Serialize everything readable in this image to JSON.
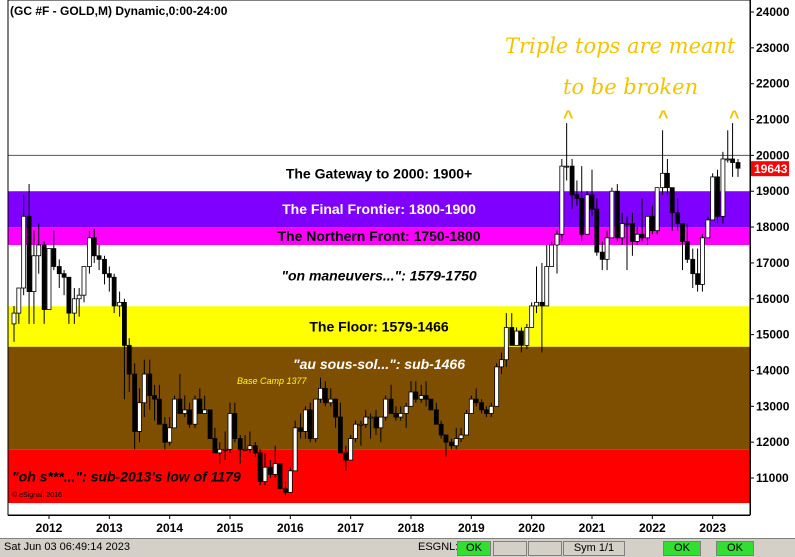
{
  "window": {
    "title": "(GC #F - GOLD,M) Dynamic,0:00-24:00"
  },
  "chart_data": {
    "type": "candlestick",
    "title": "(GC #F - GOLD,M) Dynamic,0:00-24:00",
    "y_ticks": [
      11000,
      12000,
      13000,
      14000,
      15000,
      16000,
      17000,
      18000,
      19000,
      20000,
      21000,
      22000,
      23000,
      24000
    ],
    "ylim": [
      10300,
      24200
    ],
    "x_ticks": [
      "2012",
      "2013",
      "2014",
      "2015",
      "2016",
      "2017",
      "2018",
      "2019",
      "2020",
      "2021",
      "2022",
      "2023"
    ],
    "last_price": "19643",
    "last_price_value": 19643,
    "reference_line": 20000,
    "bands": [
      {
        "label": "The Gateway to 2000:  1900+",
        "from": 19000,
        "to": 20000,
        "color": "#ffffff",
        "text_color": "#000000",
        "italic": false
      },
      {
        "label": "The Final Frontier:  1800-1900",
        "from": 18000,
        "to": 19000,
        "color": "#7f00ff",
        "text_color": "#ffffff",
        "italic": false
      },
      {
        "label": "The Northern Front:  1750-1800",
        "from": 17500,
        "to": 18000,
        "color": "#ff00ff",
        "text_color": "#000000",
        "italic": false
      },
      {
        "label": "\"on maneuvers...\":  1579-1750",
        "from": 15790,
        "to": 17500,
        "color": "#ffffff",
        "text_color": "#000000",
        "italic": true
      },
      {
        "label": "The Floor:  1579-1466",
        "from": 14660,
        "to": 15790,
        "color": "#ffff00",
        "text_color": "#000000",
        "italic": false
      },
      {
        "label": "\"au sous-sol...\":  sub-1466",
        "from": 11790,
        "to": 14660,
        "color": "#7f4f00",
        "text_color": "#ffffff",
        "italic": true
      },
      {
        "label": "\"oh s***...\":  sub-2013's low of 1179",
        "from": 10300,
        "to": 11790,
        "color": "#ff0000",
        "text_color": "#000000",
        "italic": true
      }
    ],
    "annotations": {
      "triple_tops_line1": "Triple tops are meant",
      "triple_tops_line2": "to be broken",
      "caret": "^",
      "base_camp": "Base Camp 1377",
      "copyright": "© eSignal, 2016"
    },
    "candles": [
      {
        "t": 2011.42,
        "o": 15300,
        "h": 15800,
        "l": 14800,
        "c": 15600
      },
      {
        "t": 2011.5,
        "o": 15600,
        "h": 16300,
        "l": 15300,
        "c": 16300
      },
      {
        "t": 2011.58,
        "o": 16300,
        "h": 18900,
        "l": 16100,
        "c": 18300
      },
      {
        "t": 2011.67,
        "o": 18300,
        "h": 19200,
        "l": 15300,
        "c": 16200
      },
      {
        "t": 2011.75,
        "o": 16200,
        "h": 17900,
        "l": 15300,
        "c": 17200
      },
      {
        "t": 2011.83,
        "o": 17200,
        "h": 18100,
        "l": 16700,
        "c": 17500
      },
      {
        "t": 2011.92,
        "o": 17500,
        "h": 17600,
        "l": 15300,
        "c": 15700
      },
      {
        "t": 2012.0,
        "o": 15700,
        "h": 17400,
        "l": 15700,
        "c": 17400
      },
      {
        "t": 2012.08,
        "o": 17400,
        "h": 17900,
        "l": 16800,
        "c": 16900
      },
      {
        "t": 2012.17,
        "o": 16900,
        "h": 17100,
        "l": 16300,
        "c": 16700
      },
      {
        "t": 2012.25,
        "o": 16700,
        "h": 16800,
        "l": 16100,
        "c": 16600
      },
      {
        "t": 2012.33,
        "o": 16600,
        "h": 16600,
        "l": 15300,
        "c": 15600
      },
      {
        "t": 2012.42,
        "o": 15600,
        "h": 16300,
        "l": 15300,
        "c": 16000
      },
      {
        "t": 2012.5,
        "o": 16000,
        "h": 16300,
        "l": 15500,
        "c": 16100
      },
      {
        "t": 2012.58,
        "o": 16100,
        "h": 16900,
        "l": 15900,
        "c": 16900
      },
      {
        "t": 2012.67,
        "o": 16900,
        "h": 17900,
        "l": 16700,
        "c": 17700
      },
      {
        "t": 2012.75,
        "o": 17700,
        "h": 17950,
        "l": 17000,
        "c": 17200
      },
      {
        "t": 2012.83,
        "o": 17200,
        "h": 17500,
        "l": 16800,
        "c": 17100
      },
      {
        "t": 2012.92,
        "o": 17100,
        "h": 17200,
        "l": 16400,
        "c": 16700
      },
      {
        "t": 2013.0,
        "o": 16700,
        "h": 16900,
        "l": 16200,
        "c": 16600
      },
      {
        "t": 2013.08,
        "o": 16600,
        "h": 16700,
        "l": 15600,
        "c": 15800
      },
      {
        "t": 2013.17,
        "o": 15800,
        "h": 16200,
        "l": 15500,
        "c": 15900
      },
      {
        "t": 2013.25,
        "o": 15900,
        "h": 16000,
        "l": 13200,
        "c": 14700
      },
      {
        "t": 2013.33,
        "o": 14700,
        "h": 14900,
        "l": 13400,
        "c": 13900
      },
      {
        "t": 2013.42,
        "o": 13900,
        "h": 14200,
        "l": 11800,
        "c": 12300
      },
      {
        "t": 2013.5,
        "o": 12300,
        "h": 13500,
        "l": 12000,
        "c": 13100
      },
      {
        "t": 2013.58,
        "o": 13100,
        "h": 14300,
        "l": 12700,
        "c": 13900
      },
      {
        "t": 2013.67,
        "o": 13900,
        "h": 14300,
        "l": 12900,
        "c": 13300
      },
      {
        "t": 2013.75,
        "o": 13300,
        "h": 13600,
        "l": 12600,
        "c": 13200
      },
      {
        "t": 2013.83,
        "o": 13200,
        "h": 13600,
        "l": 12500,
        "c": 12500
      },
      {
        "t": 2013.92,
        "o": 12500,
        "h": 12700,
        "l": 11800,
        "c": 12000
      },
      {
        "t": 2014.0,
        "o": 12000,
        "h": 12700,
        "l": 11900,
        "c": 12400
      },
      {
        "t": 2014.08,
        "o": 12400,
        "h": 13300,
        "l": 12400,
        "c": 13200
      },
      {
        "t": 2014.17,
        "o": 13200,
        "h": 13900,
        "l": 12800,
        "c": 12800
      },
      {
        "t": 2014.25,
        "o": 12800,
        "h": 13300,
        "l": 12700,
        "c": 12900
      },
      {
        "t": 2014.33,
        "o": 12900,
        "h": 13100,
        "l": 12400,
        "c": 12500
      },
      {
        "t": 2014.42,
        "o": 12500,
        "h": 13300,
        "l": 12400,
        "c": 13200
      },
      {
        "t": 2014.5,
        "o": 13200,
        "h": 13500,
        "l": 12900,
        "c": 12800
      },
      {
        "t": 2014.58,
        "o": 12800,
        "h": 13300,
        "l": 12800,
        "c": 12900
      },
      {
        "t": 2014.67,
        "o": 12900,
        "h": 12900,
        "l": 12100,
        "c": 12100
      },
      {
        "t": 2014.75,
        "o": 12100,
        "h": 12400,
        "l": 11800,
        "c": 11700
      },
      {
        "t": 2014.83,
        "o": 11700,
        "h": 12000,
        "l": 11400,
        "c": 11800
      },
      {
        "t": 2014.92,
        "o": 11800,
        "h": 12300,
        "l": 11500,
        "c": 11800
      },
      {
        "t": 2015.0,
        "o": 11800,
        "h": 13100,
        "l": 11700,
        "c": 12800
      },
      {
        "t": 2015.08,
        "o": 12800,
        "h": 13100,
        "l": 12000,
        "c": 12100
      },
      {
        "t": 2015.17,
        "o": 12100,
        "h": 12200,
        "l": 11400,
        "c": 11800
      },
      {
        "t": 2015.25,
        "o": 11800,
        "h": 12200,
        "l": 11800,
        "c": 11800
      },
      {
        "t": 2015.33,
        "o": 11800,
        "h": 12300,
        "l": 11700,
        "c": 11900
      },
      {
        "t": 2015.42,
        "o": 11900,
        "h": 12000,
        "l": 11600,
        "c": 11700
      },
      {
        "t": 2015.5,
        "o": 11700,
        "h": 11800,
        "l": 10800,
        "c": 10900
      },
      {
        "t": 2015.58,
        "o": 10900,
        "h": 11700,
        "l": 10800,
        "c": 11300
      },
      {
        "t": 2015.67,
        "o": 11300,
        "h": 11500,
        "l": 11000,
        "c": 11100
      },
      {
        "t": 2015.75,
        "o": 11100,
        "h": 11900,
        "l": 11000,
        "c": 11400
      },
      {
        "t": 2015.83,
        "o": 11400,
        "h": 11400,
        "l": 10700,
        "c": 10700
      },
      {
        "t": 2015.92,
        "o": 10700,
        "h": 10900,
        "l": 10500,
        "c": 10600
      },
      {
        "t": 2016.0,
        "o": 10600,
        "h": 11300,
        "l": 10600,
        "c": 11200
      },
      {
        "t": 2016.08,
        "o": 11200,
        "h": 12600,
        "l": 11200,
        "c": 12400
      },
      {
        "t": 2016.17,
        "o": 12400,
        "h": 12800,
        "l": 12100,
        "c": 12300
      },
      {
        "t": 2016.25,
        "o": 12300,
        "h": 13000,
        "l": 12100,
        "c": 12900
      },
      {
        "t": 2016.33,
        "o": 12900,
        "h": 13100,
        "l": 12000,
        "c": 12100
      },
      {
        "t": 2016.42,
        "o": 12100,
        "h": 13200,
        "l": 12000,
        "c": 13200
      },
      {
        "t": 2016.5,
        "o": 13200,
        "h": 13800,
        "l": 13100,
        "c": 13500
      },
      {
        "t": 2016.58,
        "o": 13500,
        "h": 13700,
        "l": 13000,
        "c": 13100
      },
      {
        "t": 2016.67,
        "o": 13100,
        "h": 13500,
        "l": 13000,
        "c": 13200
      },
      {
        "t": 2016.75,
        "o": 13200,
        "h": 13200,
        "l": 12400,
        "c": 12700
      },
      {
        "t": 2016.83,
        "o": 12700,
        "h": 13100,
        "l": 11700,
        "c": 11700
      },
      {
        "t": 2016.92,
        "o": 11700,
        "h": 11900,
        "l": 11200,
        "c": 11500
      },
      {
        "t": 2017.0,
        "o": 11500,
        "h": 12200,
        "l": 11500,
        "c": 12100
      },
      {
        "t": 2017.08,
        "o": 12100,
        "h": 12600,
        "l": 12000,
        "c": 12500
      },
      {
        "t": 2017.17,
        "o": 12500,
        "h": 12600,
        "l": 11900,
        "c": 12500
      },
      {
        "t": 2017.25,
        "o": 12500,
        "h": 12900,
        "l": 12400,
        "c": 12700
      },
      {
        "t": 2017.33,
        "o": 12700,
        "h": 12800,
        "l": 12100,
        "c": 12700
      },
      {
        "t": 2017.42,
        "o": 12700,
        "h": 12900,
        "l": 12200,
        "c": 12400
      },
      {
        "t": 2017.5,
        "o": 12400,
        "h": 12700,
        "l": 12000,
        "c": 12700
      },
      {
        "t": 2017.58,
        "o": 12700,
        "h": 13300,
        "l": 12600,
        "c": 13200
      },
      {
        "t": 2017.67,
        "o": 13200,
        "h": 13600,
        "l": 12800,
        "c": 12800
      },
      {
        "t": 2017.75,
        "o": 12800,
        "h": 13000,
        "l": 12600,
        "c": 12700
      },
      {
        "t": 2017.83,
        "o": 12700,
        "h": 13000,
        "l": 12600,
        "c": 12800
      },
      {
        "t": 2017.92,
        "o": 12800,
        "h": 13100,
        "l": 12400,
        "c": 13000
      },
      {
        "t": 2018.0,
        "o": 13000,
        "h": 13700,
        "l": 13000,
        "c": 13400
      },
      {
        "t": 2018.08,
        "o": 13400,
        "h": 13700,
        "l": 13100,
        "c": 13200
      },
      {
        "t": 2018.17,
        "o": 13200,
        "h": 13600,
        "l": 13100,
        "c": 13300
      },
      {
        "t": 2018.25,
        "o": 13300,
        "h": 13700,
        "l": 13000,
        "c": 13200
      },
      {
        "t": 2018.33,
        "o": 13200,
        "h": 13200,
        "l": 12900,
        "c": 12900
      },
      {
        "t": 2018.42,
        "o": 12900,
        "h": 13100,
        "l": 12500,
        "c": 12500
      },
      {
        "t": 2018.5,
        "o": 12500,
        "h": 12600,
        "l": 12100,
        "c": 12200
      },
      {
        "t": 2018.58,
        "o": 12200,
        "h": 12200,
        "l": 11600,
        "c": 12000
      },
      {
        "t": 2018.67,
        "o": 12000,
        "h": 12100,
        "l": 11800,
        "c": 11900
      },
      {
        "t": 2018.75,
        "o": 11900,
        "h": 12400,
        "l": 11800,
        "c": 12100
      },
      {
        "t": 2018.83,
        "o": 12100,
        "h": 12400,
        "l": 12000,
        "c": 12200
      },
      {
        "t": 2018.92,
        "o": 12200,
        "h": 12900,
        "l": 12200,
        "c": 12800
      },
      {
        "t": 2019.0,
        "o": 12800,
        "h": 13300,
        "l": 12800,
        "c": 13200
      },
      {
        "t": 2019.08,
        "o": 13200,
        "h": 13500,
        "l": 13000,
        "c": 13100
      },
      {
        "t": 2019.17,
        "o": 13100,
        "h": 13200,
        "l": 12800,
        "c": 12900
      },
      {
        "t": 2019.25,
        "o": 12900,
        "h": 13000,
        "l": 12700,
        "c": 12800
      },
      {
        "t": 2019.33,
        "o": 12800,
        "h": 13100,
        "l": 12700,
        "c": 13000
      },
      {
        "t": 2019.42,
        "o": 13000,
        "h": 14200,
        "l": 13000,
        "c": 14100
      },
      {
        "t": 2019.5,
        "o": 14100,
        "h": 14500,
        "l": 13900,
        "c": 14300
      },
      {
        "t": 2019.58,
        "o": 14300,
        "h": 15600,
        "l": 14100,
        "c": 15200
      },
      {
        "t": 2019.67,
        "o": 15200,
        "h": 15600,
        "l": 14700,
        "c": 14700
      },
      {
        "t": 2019.75,
        "o": 14700,
        "h": 15200,
        "l": 14700,
        "c": 15100
      },
      {
        "t": 2019.83,
        "o": 15100,
        "h": 15200,
        "l": 14500,
        "c": 14700
      },
      {
        "t": 2019.92,
        "o": 14700,
        "h": 15300,
        "l": 14600,
        "c": 15200
      },
      {
        "t": 2020.0,
        "o": 15200,
        "h": 15900,
        "l": 15200,
        "c": 15800
      },
      {
        "t": 2020.08,
        "o": 15800,
        "h": 16900,
        "l": 15600,
        "c": 15900
      },
      {
        "t": 2020.17,
        "o": 15900,
        "h": 17000,
        "l": 14500,
        "c": 15800
      },
      {
        "t": 2020.25,
        "o": 15800,
        "h": 17500,
        "l": 15800,
        "c": 16900
      },
      {
        "t": 2020.33,
        "o": 16900,
        "h": 17600,
        "l": 16900,
        "c": 17500
      },
      {
        "t": 2020.42,
        "o": 17500,
        "h": 17900,
        "l": 16700,
        "c": 17800
      },
      {
        "t": 2020.5,
        "o": 17800,
        "h": 19900,
        "l": 17600,
        "c": 19700
      },
      {
        "t": 2020.58,
        "o": 19700,
        "h": 20900,
        "l": 19300,
        "c": 19700
      },
      {
        "t": 2020.67,
        "o": 19700,
        "h": 19900,
        "l": 18500,
        "c": 18900
      },
      {
        "t": 2020.75,
        "o": 18900,
        "h": 19300,
        "l": 18600,
        "c": 18800
      },
      {
        "t": 2020.83,
        "o": 18800,
        "h": 19700,
        "l": 17600,
        "c": 17800
      },
      {
        "t": 2020.92,
        "o": 17800,
        "h": 19000,
        "l": 17800,
        "c": 18900
      },
      {
        "t": 2021.0,
        "o": 18900,
        "h": 19600,
        "l": 18300,
        "c": 18500
      },
      {
        "t": 2021.08,
        "o": 18500,
        "h": 18800,
        "l": 17200,
        "c": 17300
      },
      {
        "t": 2021.17,
        "o": 17300,
        "h": 17600,
        "l": 16800,
        "c": 17100
      },
      {
        "t": 2021.25,
        "o": 17100,
        "h": 17900,
        "l": 16800,
        "c": 17700
      },
      {
        "t": 2021.33,
        "o": 17700,
        "h": 19100,
        "l": 17700,
        "c": 19000
      },
      {
        "t": 2021.42,
        "o": 19000,
        "h": 19200,
        "l": 17600,
        "c": 17700
      },
      {
        "t": 2021.5,
        "o": 17700,
        "h": 18400,
        "l": 17500,
        "c": 18100
      },
      {
        "t": 2021.58,
        "o": 18100,
        "h": 18300,
        "l": 16800,
        "c": 18100
      },
      {
        "t": 2021.67,
        "o": 18100,
        "h": 18400,
        "l": 17200,
        "c": 17600
      },
      {
        "t": 2021.75,
        "o": 17600,
        "h": 18000,
        "l": 17500,
        "c": 17800
      },
      {
        "t": 2021.83,
        "o": 17800,
        "h": 18800,
        "l": 17600,
        "c": 17700
      },
      {
        "t": 2021.92,
        "o": 17700,
        "h": 18300,
        "l": 17500,
        "c": 18300
      },
      {
        "t": 2022.0,
        "o": 18300,
        "h": 18600,
        "l": 17800,
        "c": 17900
      },
      {
        "t": 2022.08,
        "o": 17900,
        "h": 19100,
        "l": 17800,
        "c": 19100
      },
      {
        "t": 2022.17,
        "o": 19100,
        "h": 20700,
        "l": 18900,
        "c": 19500
      },
      {
        "t": 2022.25,
        "o": 19500,
        "h": 19900,
        "l": 18900,
        "c": 19100
      },
      {
        "t": 2022.33,
        "o": 19100,
        "h": 19100,
        "l": 17900,
        "c": 18400
      },
      {
        "t": 2022.42,
        "o": 18400,
        "h": 18800,
        "l": 17900,
        "c": 18100
      },
      {
        "t": 2022.5,
        "o": 18100,
        "h": 18100,
        "l": 16800,
        "c": 17600
      },
      {
        "t": 2022.58,
        "o": 17600,
        "h": 18100,
        "l": 17000,
        "c": 17100
      },
      {
        "t": 2022.67,
        "o": 17100,
        "h": 17400,
        "l": 16300,
        "c": 16700
      },
      {
        "t": 2022.75,
        "o": 16700,
        "h": 17400,
        "l": 16200,
        "c": 16400
      },
      {
        "t": 2022.83,
        "o": 16400,
        "h": 17800,
        "l": 16200,
        "c": 17700
      },
      {
        "t": 2022.92,
        "o": 17700,
        "h": 18300,
        "l": 17700,
        "c": 18200
      },
      {
        "t": 2023.0,
        "o": 18200,
        "h": 19500,
        "l": 18200,
        "c": 19400
      },
      {
        "t": 2023.08,
        "o": 19400,
        "h": 19600,
        "l": 18100,
        "c": 18300
      },
      {
        "t": 2023.17,
        "o": 18300,
        "h": 20100,
        "l": 18100,
        "c": 19900
      },
      {
        "t": 2023.25,
        "o": 19900,
        "h": 20700,
        "l": 19800,
        "c": 19900
      },
      {
        "t": 2023.33,
        "o": 19900,
        "h": 20900,
        "l": 19400,
        "c": 19800
      },
      {
        "t": 2023.42,
        "o": 19800,
        "h": 19900,
        "l": 19400,
        "c": 19643
      }
    ]
  },
  "status_bar": {
    "datetime": "Sat Jun 03 06:49:14 2023",
    "esgnl_label": "ESGNL:",
    "ok1": "OK",
    "ok2": "OK",
    "sym": "Sym 1/1",
    "ok3": "OK",
    "ok4": "OK"
  }
}
